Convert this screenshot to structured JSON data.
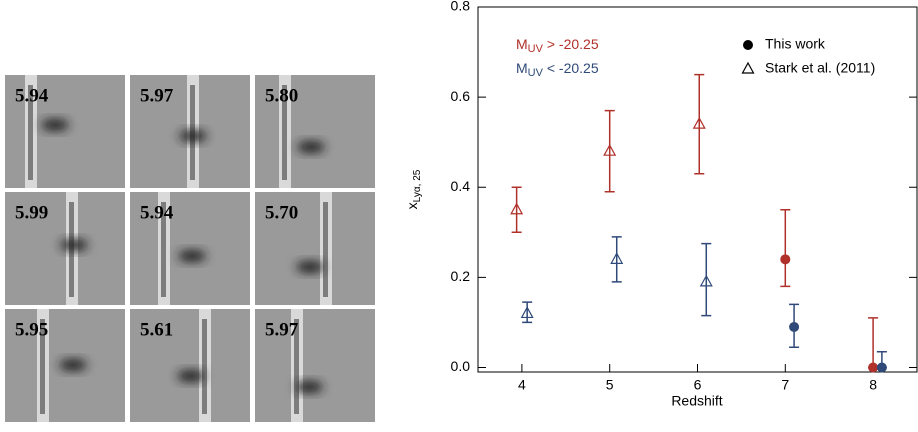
{
  "stamps": [
    "5.94",
    "5.97",
    "5.80",
    "5.99",
    "5.94",
    "5.70",
    "5.95",
    "5.61",
    "5.97"
  ],
  "chart_data": {
    "type": "scatter",
    "xlabel": "Redshift",
    "ylabel": {
      "main": "x",
      "sub": "Lyα, 25"
    },
    "xlim": [
      3.5,
      8.5
    ],
    "ylim": [
      -0.01,
      0.8
    ],
    "xticks": [
      4,
      5,
      6,
      7,
      8
    ],
    "yticks": [
      {
        "value": 0,
        "label": "0.0"
      },
      0.2,
      0.4,
      0.6,
      0.8
    ],
    "color_legend": [
      {
        "main": "M",
        "sub": "UV",
        "rest": " > -20.25",
        "color": "#b0302a"
      },
      {
        "main": "M",
        "sub": "UV",
        "rest": " < -20.25",
        "color": "#2f4a78"
      }
    ],
    "marker_legend": [
      {
        "label": "This work",
        "marker": "circle"
      },
      {
        "label": "Stark et al. (2011)",
        "marker": "triangle"
      }
    ],
    "series": [
      {
        "color": "#b0302a",
        "marker": "triangle",
        "x": [
          3.94,
          5.0,
          6.02
        ],
        "values": [
          0.35,
          0.48,
          0.54
        ],
        "lower": [
          0.3,
          0.39,
          0.43
        ],
        "upper": [
          0.4,
          0.57,
          0.65
        ]
      },
      {
        "color": "#2f4a78",
        "marker": "triangle",
        "x": [
          4.06,
          5.08,
          6.1
        ],
        "values": [
          0.12,
          0.24,
          0.19
        ],
        "lower": [
          0.1,
          0.19,
          0.115
        ],
        "upper": [
          0.145,
          0.29,
          0.275
        ]
      },
      {
        "color": "#b0302a",
        "marker": "circle",
        "x": [
          7.0,
          8.0
        ],
        "values": [
          0.24,
          0.0
        ],
        "lower": [
          0.18,
          0.0
        ],
        "upper": [
          0.35,
          0.11
        ]
      },
      {
        "color": "#2f4a78",
        "marker": "circle",
        "x": [
          7.1,
          8.1
        ],
        "values": [
          0.09,
          0.0
        ],
        "lower": [
          0.045,
          0.0
        ],
        "upper": [
          0.14,
          0.035
        ]
      }
    ]
  }
}
